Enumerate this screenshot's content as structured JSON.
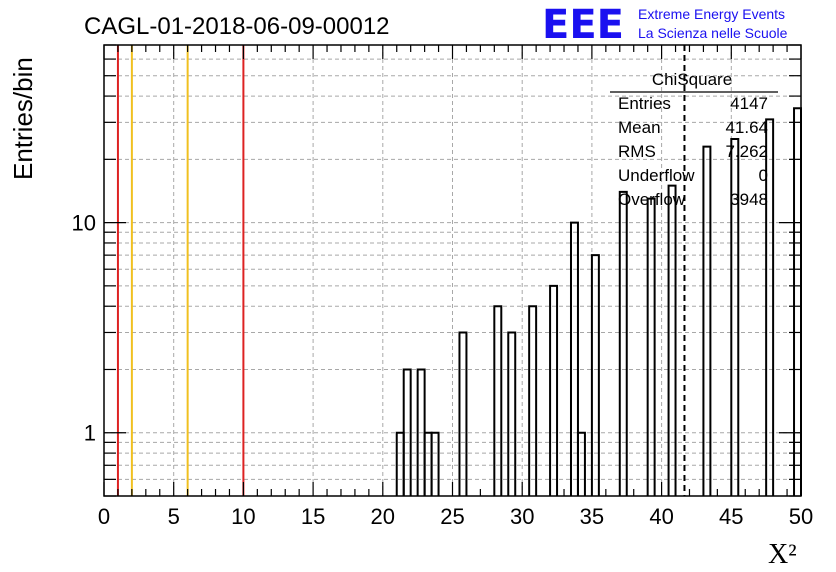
{
  "chart_data": {
    "type": "bar",
    "title": "CAGL-01-2018-06-09-00012",
    "xlabel": "X²",
    "ylabel": "Entries/bin",
    "xlim": [
      0,
      50
    ],
    "ylim": [
      0.5,
      70
    ],
    "y_scale": "log",
    "grid": true,
    "x_ticks": [
      "0",
      "5",
      "10",
      "15",
      "20",
      "25",
      "30",
      "35",
      "40",
      "45",
      "50"
    ],
    "y_ticks": [
      "1",
      "10"
    ],
    "bin_width": 0.5,
    "bins": [
      {
        "x": 21.0,
        "value": 1
      },
      {
        "x": 21.5,
        "value": 2
      },
      {
        "x": 22.5,
        "value": 2
      },
      {
        "x": 23.0,
        "value": 1
      },
      {
        "x": 23.5,
        "value": 1
      },
      {
        "x": 25.5,
        "value": 3
      },
      {
        "x": 28.0,
        "value": 4
      },
      {
        "x": 29.0,
        "value": 3
      },
      {
        "x": 30.5,
        "value": 4
      },
      {
        "x": 32.0,
        "value": 5
      },
      {
        "x": 33.5,
        "value": 10
      },
      {
        "x": 34.0,
        "value": 1
      },
      {
        "x": 35.0,
        "value": 7
      },
      {
        "x": 37.0,
        "value": 14
      },
      {
        "x": 39.0,
        "value": 13
      },
      {
        "x": 40.5,
        "value": 15
      },
      {
        "x": 43.0,
        "value": 23
      },
      {
        "x": 45.0,
        "value": 25
      },
      {
        "x": 47.5,
        "value": 31
      },
      {
        "x": 49.5,
        "value": 35
      }
    ],
    "vertical_lines": [
      {
        "x": 1,
        "color": "#dd2222",
        "style": "solid"
      },
      {
        "x": 2,
        "color": "#f0c020",
        "style": "solid"
      },
      {
        "x": 6,
        "color": "#f0c020",
        "style": "solid"
      },
      {
        "x": 10,
        "color": "#dd2222",
        "style": "solid"
      },
      {
        "x": 41.64,
        "color": "#000000",
        "style": "dashed"
      }
    ],
    "stats": {
      "name": "ChiSquare",
      "rows": [
        {
          "label": "Entries",
          "value": "4147"
        },
        {
          "label": "Mean",
          "value": "41.64"
        },
        {
          "label": "RMS",
          "value": "7.262"
        },
        {
          "label": "Underflow",
          "value": "0"
        },
        {
          "label": "Overflow",
          "value": "3948"
        }
      ]
    }
  },
  "logo": {
    "mark": "EEE",
    "line1": "Extreme Energy Events",
    "line2": "La Scienza nelle Scuole"
  }
}
